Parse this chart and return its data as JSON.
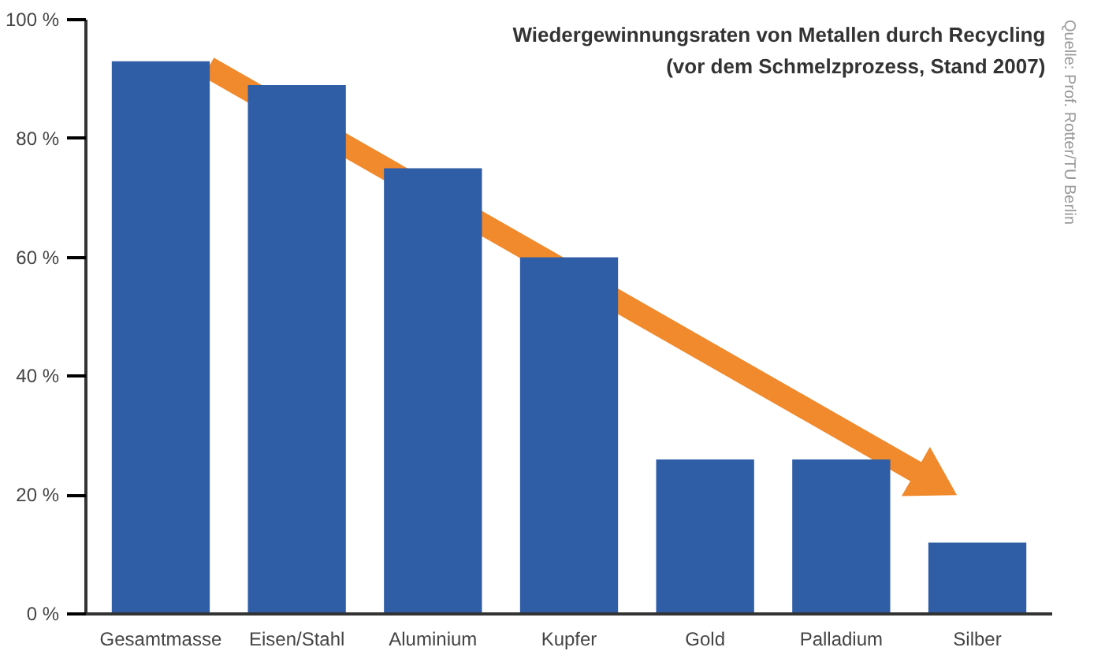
{
  "chart_data": {
    "type": "bar",
    "title": "Wiedergewinnungsraten von Metallen durch Recycling",
    "subtitle": "(vor dem Schmelzprozess, Stand 2007)",
    "categories": [
      "Gesamtmasse",
      "Eisen/Stahl",
      "Aluminium",
      "Kupfer",
      "Gold",
      "Palladium",
      "Silber"
    ],
    "values": [
      93,
      89,
      75,
      60,
      26,
      26,
      12
    ],
    "color": "#2f5ea6",
    "ylim": [
      0,
      100
    ],
    "yticks": [
      {
        "value": 0,
        "label": "0 %"
      },
      {
        "value": 20,
        "label": "20 %"
      },
      {
        "value": 40,
        "label": "40 %"
      },
      {
        "value": 60,
        "label": "60 %"
      },
      {
        "value": 80,
        "label": "80 %"
      },
      {
        "value": 100,
        "label": "100 %"
      }
    ],
    "annotations": [
      "Quelle: Prof. Rotter/TU Berlin"
    ]
  }
}
